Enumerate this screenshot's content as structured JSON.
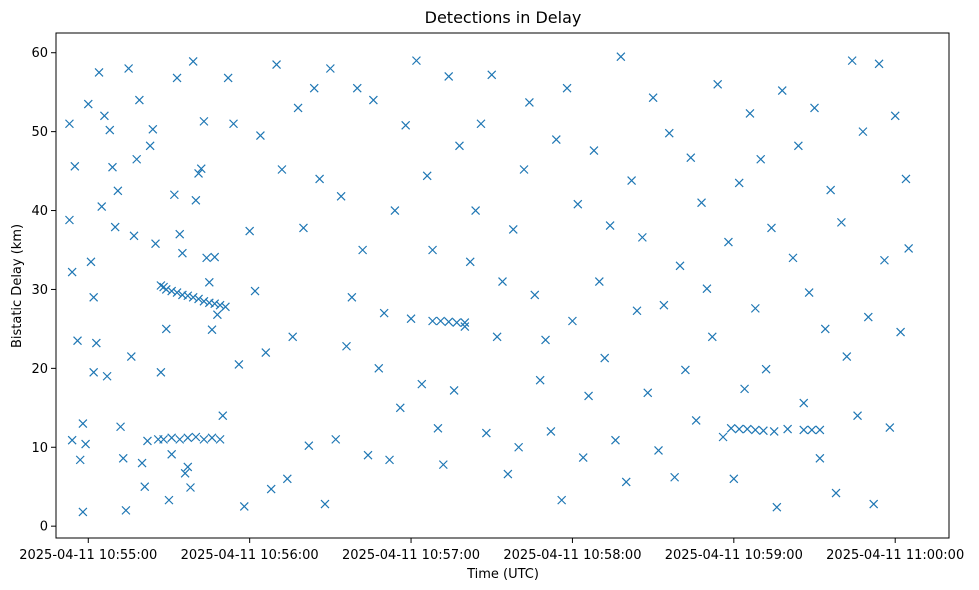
{
  "chart_data": {
    "type": "scatter",
    "title": "Detections in Delay",
    "xlabel": "Time (UTC)",
    "ylabel": "Bistatic Delay (km)",
    "x_range": [
      "2025-04-11 10:54:48",
      "2025-04-11 11:00:20"
    ],
    "ylim": [
      -1.5,
      62.5
    ],
    "x_ticks": [
      "2025-04-11 10:55:00",
      "2025-04-11 10:56:00",
      "2025-04-11 10:57:00",
      "2025-04-11 10:58:00",
      "2025-04-11 10:59:00",
      "2025-04-11 11:00:00"
    ],
    "y_ticks": [
      0,
      10,
      20,
      30,
      40,
      50,
      60
    ],
    "marker": "x",
    "grid": false,
    "legend": "none",
    "color": "#1f77b4",
    "series": [
      {
        "x": [
          "10:54:53",
          "10:54:53",
          "10:54:54",
          "10:54:54",
          "10:54:55",
          "10:54:56",
          "10:54:57",
          "10:54:58",
          "10:54:58",
          "10:54:59",
          "10:55:00",
          "10:55:01",
          "10:55:02",
          "10:55:02",
          "10:55:03",
          "10:55:04",
          "10:55:05",
          "10:55:06",
          "10:55:07",
          "10:55:08",
          "10:55:09",
          "10:55:10",
          "10:55:11",
          "10:55:12",
          "10:55:13",
          "10:55:14",
          "10:55:15",
          "10:55:16",
          "10:55:17",
          "10:55:18",
          "10:55:19",
          "10:55:20",
          "10:55:21",
          "10:55:22",
          "10:55:23",
          "10:55:24",
          "10:55:25",
          "10:55:26",
          "10:55:27",
          "10:55:28",
          "10:55:29",
          "10:55:30",
          "10:55:31",
          "10:55:32",
          "10:55:33",
          "10:55:34",
          "10:55:35",
          "10:55:36",
          "10:55:37",
          "10:55:38",
          "10:55:39",
          "10:55:40",
          "10:55:41",
          "10:55:42",
          "10:55:43",
          "10:55:44",
          "10:55:45",
          "10:55:46",
          "10:55:47",
          "10:55:48",
          "10:55:50",
          "10:55:52",
          "10:55:54",
          "10:55:56",
          "10:55:58",
          "10:56:00",
          "10:56:02",
          "10:56:04",
          "10:56:06",
          "10:56:08",
          "10:56:10",
          "10:56:12",
          "10:56:14",
          "10:56:16",
          "10:56:18",
          "10:56:20",
          "10:56:22",
          "10:56:24",
          "10:56:26",
          "10:56:28",
          "10:56:30",
          "10:56:32",
          "10:56:34",
          "10:56:36",
          "10:56:38",
          "10:56:40",
          "10:56:42",
          "10:56:44",
          "10:56:46",
          "10:56:48",
          "10:56:50",
          "10:56:52",
          "10:56:54",
          "10:56:56",
          "10:56:58",
          "10:57:00",
          "10:57:02",
          "10:57:04",
          "10:57:06",
          "10:57:08",
          "10:57:10",
          "10:57:12",
          "10:57:14",
          "10:57:16",
          "10:57:18",
          "10:57:20",
          "10:57:22",
          "10:57:24",
          "10:57:26",
          "10:57:28",
          "10:57:30",
          "10:57:32",
          "10:57:34",
          "10:57:36",
          "10:57:38",
          "10:57:40",
          "10:57:42",
          "10:57:44",
          "10:57:46",
          "10:57:48",
          "10:57:50",
          "10:57:52",
          "10:57:54",
          "10:57:56",
          "10:57:58",
          "10:58:00",
          "10:58:02",
          "10:58:04",
          "10:58:06",
          "10:58:08",
          "10:58:10",
          "10:58:12",
          "10:58:14",
          "10:58:16",
          "10:58:18",
          "10:58:20",
          "10:58:22",
          "10:58:24",
          "10:58:26",
          "10:58:28",
          "10:58:30",
          "10:58:32",
          "10:58:34",
          "10:58:36",
          "10:58:38",
          "10:58:40",
          "10:58:42",
          "10:58:44",
          "10:58:46",
          "10:58:48",
          "10:58:50",
          "10:58:52",
          "10:58:54",
          "10:58:56",
          "10:58:58",
          "10:59:00",
          "10:59:02",
          "10:59:04",
          "10:59:06",
          "10:59:08",
          "10:59:10",
          "10:59:12",
          "10:59:14",
          "10:59:16",
          "10:59:18",
          "10:59:20",
          "10:59:22",
          "10:59:24",
          "10:59:26",
          "10:59:28",
          "10:59:30",
          "10:59:32",
          "10:59:34",
          "10:59:36",
          "10:59:38",
          "10:59:40",
          "10:59:42",
          "10:59:44",
          "10:59:46",
          "10:59:48",
          "10:59:50",
          "10:59:52",
          "10:59:54",
          "10:59:56",
          "10:59:58",
          "11:00:00",
          "11:00:02",
          "11:00:04",
          "11:00:05",
          "10:55:27",
          "10:55:29",
          "10:55:31",
          "10:55:33",
          "10:55:35",
          "10:55:37",
          "10:55:39",
          "10:55:41",
          "10:55:43",
          "10:55:45",
          "10:55:47",
          "10:55:49",
          "10:55:51",
          "10:55:28",
          "10:55:31",
          "10:55:34",
          "10:55:37",
          "10:55:40",
          "10:55:43",
          "10:55:46",
          "10:55:49",
          "10:57:08",
          "10:57:11",
          "10:57:14",
          "10:57:17",
          "10:57:20",
          "10:58:59",
          "10:59:02",
          "10:59:05",
          "10:59:08",
          "10:59:11",
          "10:59:15",
          "10:59:26",
          "10:59:29",
          "10:59:32"
        ],
        "y": [
          51.0,
          38.8,
          32.2,
          10.9,
          45.6,
          23.5,
          8.4,
          13.0,
          1.8,
          10.4,
          53.5,
          33.5,
          29.0,
          19.5,
          23.2,
          57.5,
          40.5,
          52.0,
          19.0,
          50.2,
          45.5,
          37.9,
          42.5,
          12.6,
          8.6,
          2.0,
          58.0,
          21.5,
          36.8,
          46.5,
          54.0,
          8.0,
          5.0,
          10.8,
          48.2,
          50.3,
          35.8,
          11.0,
          19.5,
          30.3,
          25.0,
          3.3,
          9.1,
          42.0,
          56.8,
          37.0,
          34.6,
          6.7,
          7.5,
          4.9,
          58.9,
          41.3,
          44.7,
          45.3,
          51.3,
          34.0,
          30.9,
          24.9,
          34.1,
          26.8,
          14.0,
          56.8,
          51.0,
          20.5,
          2.5,
          37.4,
          29.8,
          49.5,
          22.0,
          4.7,
          58.5,
          45.2,
          6.0,
          24.0,
          53.0,
          37.8,
          10.2,
          55.5,
          44.0,
          2.8,
          58.0,
          11.0,
          41.8,
          22.8,
          29.0,
          55.5,
          35.0,
          9.0,
          54.0,
          20.0,
          27.0,
          8.4,
          40.0,
          15.0,
          50.8,
          26.3,
          59.0,
          18.0,
          44.4,
          35.0,
          12.4,
          7.8,
          57.0,
          17.2,
          48.2,
          25.3,
          33.5,
          40.0,
          51.0,
          11.8,
          57.2,
          24.0,
          31.0,
          6.6,
          37.6,
          10.0,
          45.2,
          53.7,
          29.3,
          18.5,
          23.6,
          12.0,
          49.0,
          3.3,
          55.5,
          26.0,
          40.8,
          8.7,
          16.5,
          47.6,
          31.0,
          21.3,
          38.1,
          10.9,
          59.5,
          5.6,
          43.8,
          27.3,
          36.6,
          16.9,
          54.3,
          9.6,
          28.0,
          49.8,
          6.2,
          33.0,
          19.8,
          46.7,
          13.4,
          41.0,
          30.1,
          24.0,
          56.0,
          11.3,
          36.0,
          6.0,
          43.5,
          17.4,
          52.3,
          27.6,
          46.5,
          19.9,
          37.8,
          2.4,
          55.2,
          12.3,
          34.0,
          48.2,
          15.6,
          29.6,
          53.0,
          8.6,
          25.0,
          42.6,
          4.2,
          38.5,
          21.5,
          59.0,
          14.0,
          50.0,
          26.5,
          2.8,
          58.6,
          33.7,
          12.5,
          52.0,
          24.6,
          44.0,
          35.2,
          30.5,
          30.0,
          29.8,
          29.6,
          29.3,
          29.2,
          29.0,
          28.8,
          28.5,
          28.3,
          28.2,
          28.0,
          27.8,
          11.0,
          11.2,
          11.0,
          11.2,
          11.3,
          11.0,
          11.2,
          11.0,
          26.0,
          26.0,
          25.9,
          25.8,
          25.8,
          12.4,
          12.3,
          12.3,
          12.2,
          12.1,
          12.0,
          12.2,
          12.2,
          12.2
        ]
      }
    ]
  }
}
